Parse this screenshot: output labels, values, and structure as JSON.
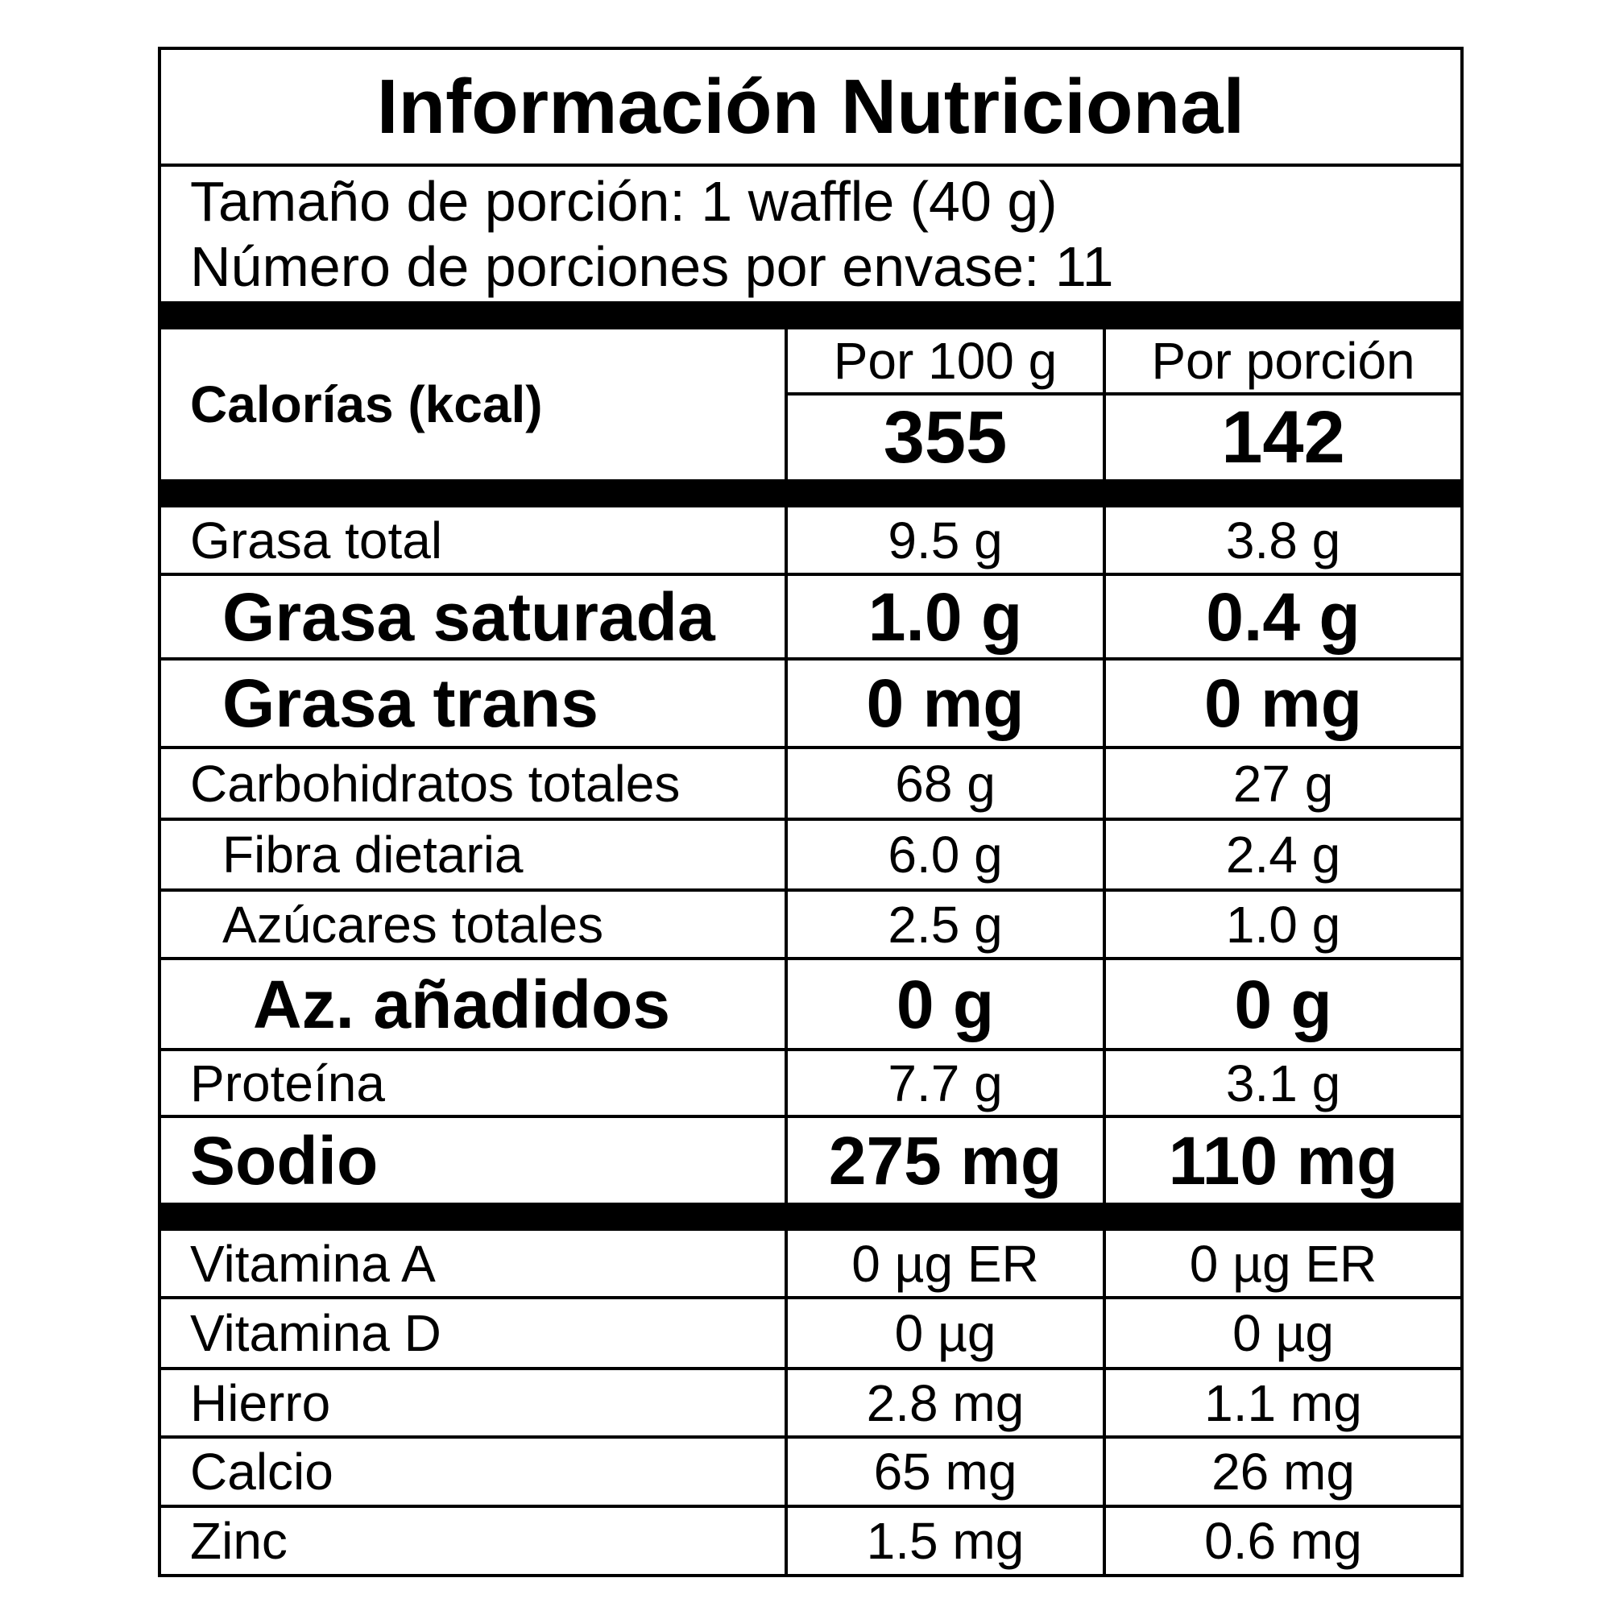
{
  "title": "Información Nutricional",
  "serving_size": "Tamaño de porción: 1 waffle (40 g)",
  "servings_per_container": "Número de porciones por envase: 11",
  "columns": [
    "Por 100 g",
    "Por porción"
  ],
  "calories": {
    "label": "Calorías (kcal)",
    "values": [
      "355",
      "142"
    ]
  },
  "nutrients": [
    {
      "label": "Grasa total",
      "values": [
        "9.5 g",
        "3.8 g"
      ]
    },
    {
      "label": "Grasa saturada",
      "values": [
        "1.0 g",
        "0.4 g"
      ]
    },
    {
      "label": "Grasa trans",
      "values": [
        "0 mg",
        "0 mg"
      ]
    },
    {
      "label": "Carbohidratos totales",
      "values": [
        "68 g",
        "27 g"
      ]
    },
    {
      "label": "Fibra dietaria",
      "values": [
        "6.0 g",
        "2.4 g"
      ]
    },
    {
      "label": "Azúcares totales",
      "values": [
        "2.5 g",
        "1.0 g"
      ]
    },
    {
      "label": "Az. añadidos",
      "values": [
        "0 g",
        "0 g"
      ]
    },
    {
      "label": "Proteína",
      "values": [
        "7.7 g",
        "3.1 g"
      ]
    },
    {
      "label": "Sodio",
      "values": [
        "275 mg",
        "110 mg"
      ]
    }
  ],
  "micronutrients": [
    {
      "label": "Vitamina A",
      "values": [
        "0 µg ER",
        "0 µg ER"
      ]
    },
    {
      "label": "Vitamina D",
      "values": [
        "0 µg",
        "0 µg"
      ]
    },
    {
      "label": "Hierro",
      "values": [
        "2.8 mg",
        "1.1 mg"
      ]
    },
    {
      "label": "Calcio",
      "values": [
        "65 mg",
        "26 mg"
      ]
    },
    {
      "label": "Zinc",
      "values": [
        "1.5 mg",
        "0.6 mg"
      ]
    }
  ]
}
